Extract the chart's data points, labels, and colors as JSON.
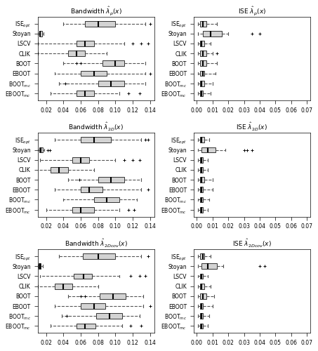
{
  "titles": [
    "Bandwidth $\\hat{\\lambda}_{p}(x)$",
    "ISE $\\hat{\\lambda}_{p}(x)$",
    "Bandwidth $\\hat{\\lambda}_{2D}(x)$",
    "ISE $\\hat{\\lambda}_{2D}(x)$",
    "Bandwidth $\\hat{\\lambda}_{2Dcov}(x)$",
    "ISE $\\hat{\\lambda}_{2Dcov}(x)$"
  ],
  "ylabels": [
    "ISE$_{opt}$",
    "Stoyan",
    "LSCV",
    "CLIK",
    "BOOT",
    "EBOOT",
    "BOOT$_{mc}$",
    "EBOOT$_{mc}$"
  ],
  "bw_xlim": [
    0.01,
    0.145
  ],
  "bw_xticks": [
    0.02,
    0.04,
    0.06,
    0.08,
    0.1,
    0.12,
    0.14
  ],
  "ise_xlim": [
    -0.002,
    0.072
  ],
  "ise_xticks": [
    0.0,
    0.01,
    0.02,
    0.03,
    0.04,
    0.05,
    0.06,
    0.07
  ],
  "bw_p": {
    "whislo": [
      0.04,
      0.01,
      0.01,
      0.01,
      0.04,
      0.03,
      0.035,
      0.025
    ],
    "q1": [
      0.065,
      0.012,
      0.055,
      0.045,
      0.085,
      0.06,
      0.08,
      0.055
    ],
    "med": [
      0.08,
      0.013,
      0.065,
      0.055,
      0.1,
      0.075,
      0.095,
      0.065
    ],
    "q3": [
      0.1,
      0.015,
      0.075,
      0.065,
      0.11,
      0.09,
      0.11,
      0.075
    ],
    "whishi": [
      0.135,
      0.017,
      0.11,
      0.09,
      0.135,
      0.135,
      0.135,
      0.105
    ],
    "fliers_lo": [
      [],
      [],
      [],
      [],
      [
        0.055,
        0.06
      ],
      [],
      [
        0.042
      ],
      []
    ],
    "fliers_hi": [
      [
        0.14
      ],
      [],
      [
        0.12,
        0.13,
        0.138
      ],
      [],
      [],
      [
        0.14
      ],
      [],
      [
        0.115,
        0.128
      ]
    ]
  },
  "ise_p": {
    "whislo": [
      0.001,
      0.001,
      0.001,
      0.001,
      0.001,
      0.001,
      0.001,
      0.001
    ],
    "q1": [
      0.002,
      0.004,
      0.002,
      0.002,
      0.002,
      0.002,
      0.002,
      0.002
    ],
    "med": [
      0.004,
      0.009,
      0.003,
      0.004,
      0.004,
      0.004,
      0.003,
      0.003
    ],
    "q3": [
      0.006,
      0.016,
      0.005,
      0.006,
      0.006,
      0.005,
      0.005,
      0.004
    ],
    "whishi": [
      0.013,
      0.02,
      0.009,
      0.01,
      0.013,
      0.012,
      0.01,
      0.009
    ],
    "fliers_lo": [
      [],
      [],
      [],
      [],
      [],
      [],
      [],
      []
    ],
    "fliers_hi": [
      [],
      [
        0.035,
        0.04
      ],
      [],
      [
        0.013
      ],
      [],
      [],
      [],
      []
    ]
  },
  "bw_2d": {
    "whislo": [
      0.03,
      0.01,
      0.013,
      0.008,
      0.045,
      0.03,
      0.04,
      0.02
    ],
    "q1": [
      0.06,
      0.012,
      0.05,
      0.025,
      0.08,
      0.06,
      0.075,
      0.05
    ],
    "med": [
      0.075,
      0.014,
      0.06,
      0.035,
      0.095,
      0.07,
      0.09,
      0.06
    ],
    "q3": [
      0.095,
      0.016,
      0.07,
      0.045,
      0.11,
      0.085,
      0.105,
      0.075
    ],
    "whishi": [
      0.13,
      0.018,
      0.1,
      0.075,
      0.13,
      0.13,
      0.125,
      0.105
    ],
    "fliers_lo": [
      [],
      [],
      [],
      [],
      [
        0.058
      ],
      [],
      [],
      []
    ],
    "fliers_hi": [
      [
        0.135,
        0.138
      ],
      [
        0.022,
        0.024
      ],
      [
        0.11,
        0.12,
        0.128
      ],
      [],
      [],
      [
        0.138
      ],
      [],
      [
        0.115,
        0.122
      ]
    ]
  },
  "ise_2d": {
    "whislo": [
      0.001,
      0.001,
      0.001,
      0.001,
      0.001,
      0.001,
      0.001,
      0.001
    ],
    "q1": [
      0.002,
      0.003,
      0.002,
      0.002,
      0.002,
      0.002,
      0.002,
      0.002
    ],
    "med": [
      0.003,
      0.007,
      0.003,
      0.003,
      0.003,
      0.003,
      0.003,
      0.003
    ],
    "q3": [
      0.005,
      0.012,
      0.004,
      0.004,
      0.005,
      0.004,
      0.004,
      0.004
    ],
    "whishi": [
      0.008,
      0.018,
      0.007,
      0.007,
      0.01,
      0.01,
      0.008,
      0.007
    ],
    "fliers_lo": [
      [],
      [],
      [],
      [],
      [],
      [],
      [],
      []
    ],
    "fliers_hi": [
      [],
      [
        0.03,
        0.032,
        0.035
      ],
      [],
      [],
      [],
      [],
      [],
      []
    ]
  },
  "bw_2dcov": {
    "whislo": [
      0.035,
      0.01,
      0.013,
      0.01,
      0.045,
      0.03,
      0.038,
      0.025
    ],
    "q1": [
      0.062,
      0.011,
      0.052,
      0.03,
      0.082,
      0.06,
      0.078,
      0.055
    ],
    "med": [
      0.08,
      0.013,
      0.063,
      0.04,
      0.097,
      0.075,
      0.093,
      0.065
    ],
    "q3": [
      0.1,
      0.014,
      0.073,
      0.05,
      0.112,
      0.088,
      0.108,
      0.077
    ],
    "whishi": [
      0.13,
      0.016,
      0.105,
      0.08,
      0.132,
      0.132,
      0.128,
      0.108
    ],
    "fliers_lo": [
      [],
      [],
      [],
      [],
      [
        0.06,
        0.065
      ],
      [],
      [
        0.044
      ],
      []
    ],
    "fliers_hi": [
      [
        0.138
      ],
      [],
      [
        0.118,
        0.128,
        0.135
      ],
      [],
      [],
      [
        0.14
      ],
      [],
      [
        0.118,
        0.13
      ]
    ]
  },
  "ise_2dcov": {
    "whislo": [
      0.001,
      0.001,
      0.001,
      0.001,
      0.001,
      0.001,
      0.001,
      0.001
    ],
    "q1": [
      0.002,
      0.003,
      0.002,
      0.002,
      0.002,
      0.002,
      0.002,
      0.002
    ],
    "med": [
      0.004,
      0.007,
      0.003,
      0.003,
      0.004,
      0.003,
      0.003,
      0.003
    ],
    "q3": [
      0.005,
      0.013,
      0.004,
      0.005,
      0.006,
      0.004,
      0.004,
      0.004
    ],
    "whishi": [
      0.009,
      0.017,
      0.007,
      0.009,
      0.011,
      0.01,
      0.008,
      0.007
    ],
    "fliers_lo": [
      [],
      [],
      [],
      [],
      [],
      [],
      [],
      []
    ],
    "fliers_hi": [
      [],
      [
        0.04,
        0.043
      ],
      [],
      [],
      [],
      [],
      [],
      []
    ]
  },
  "box_color": "#d3d3d3",
  "median_color": "#000000",
  "whisker_color": "#555555",
  "flier_color": "#000000",
  "background_color": "#ffffff"
}
